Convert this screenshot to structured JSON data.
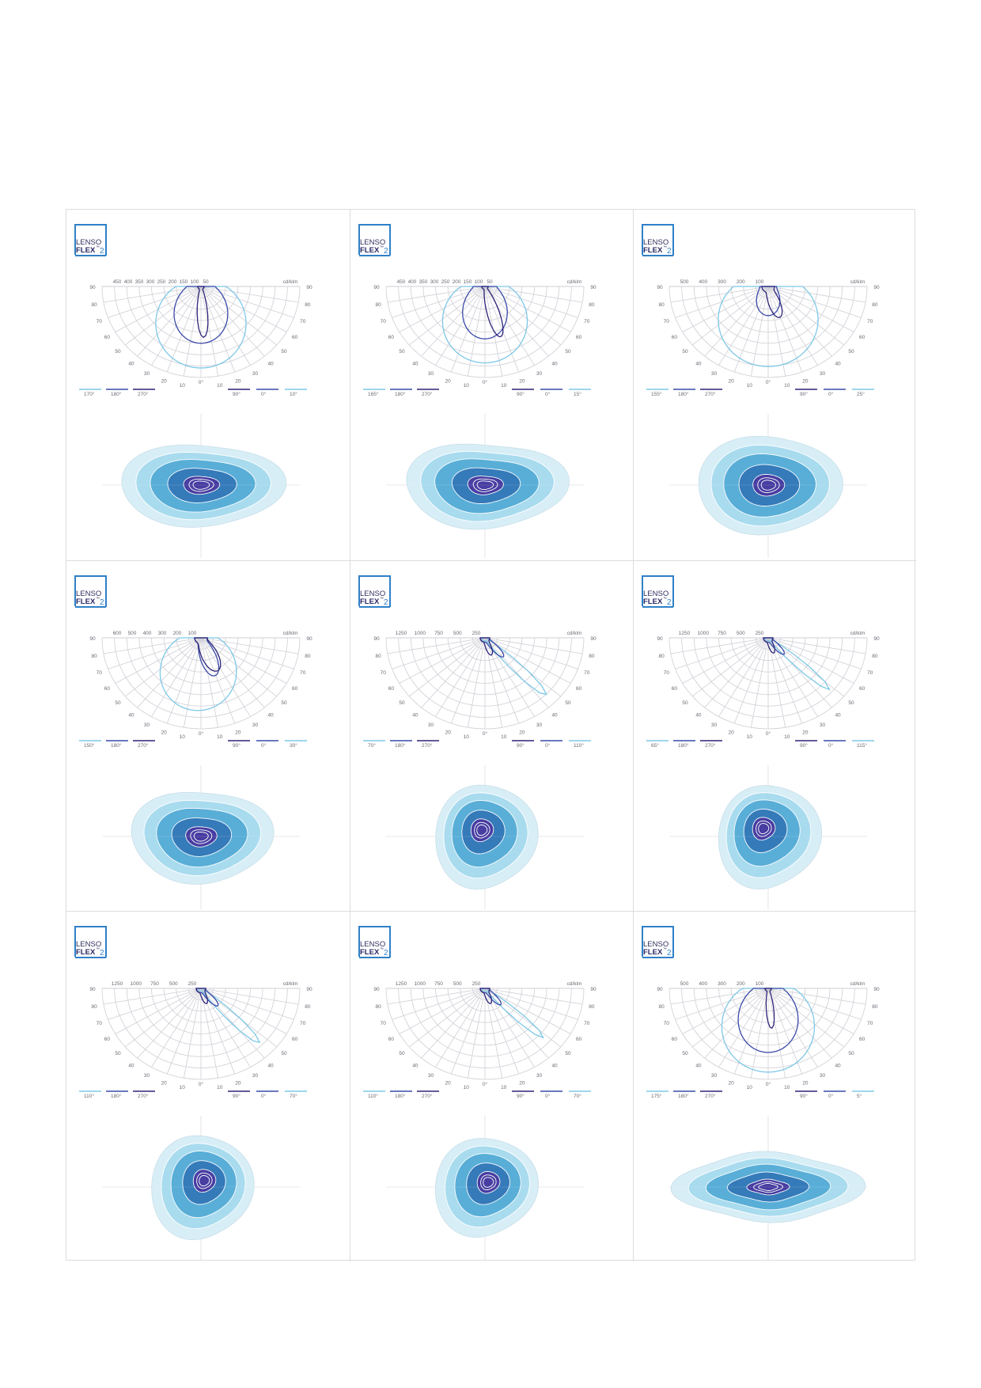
{
  "brand": {
    "line1": "LENSO",
    "line2": "FLEX",
    "tm": "™",
    "num": "2"
  },
  "colors": {
    "grid": "#cfcfd6",
    "text": "#6b6b75",
    "curve_c0": "#3a4aa8",
    "curve_c90": "#2d2478",
    "curve_cmax": "#7ec8e6",
    "iso": [
      "#d6eef7",
      "#a6daee",
      "#55acd6",
      "#3478b8",
      "#4a3aa0"
    ],
    "border": "#dcdcdc"
  },
  "chart_data": [
    {
      "type": "polar",
      "unit": "cd/klm",
      "ticks": [
        "450",
        "400",
        "350",
        "300",
        "250",
        "200",
        "150",
        "100",
        "50"
      ],
      "legend": [
        "170°",
        "180°",
        "270°",
        "90°",
        "0°",
        "10°"
      ],
      "angles": [
        "90",
        "80",
        "70",
        "60",
        "50",
        "40",
        "30",
        "20",
        "10",
        "0°"
      ]
    },
    {
      "type": "polar",
      "unit": "cd/klm",
      "ticks": [
        "450",
        "400",
        "350",
        "300",
        "250",
        "200",
        "150",
        "100",
        "50"
      ],
      "legend": [
        "165°",
        "180°",
        "270°",
        "90°",
        "0°",
        "15°"
      ],
      "angles": [
        "90",
        "80",
        "70",
        "60",
        "50",
        "40",
        "30",
        "20",
        "10",
        "0°"
      ]
    },
    {
      "type": "polar",
      "unit": "cd/klm",
      "ticks": [
        "500",
        "400",
        "300",
        "200",
        "100"
      ],
      "legend": [
        "155°",
        "180°",
        "270°",
        "90°",
        "0°",
        "25°"
      ],
      "angles": [
        "90",
        "80",
        "70",
        "60",
        "50",
        "40",
        "30",
        "20",
        "10",
        "0°"
      ]
    },
    {
      "type": "polar",
      "unit": "cd/klm",
      "ticks": [
        "600",
        "500",
        "400",
        "300",
        "200",
        "100"
      ],
      "legend": [
        "150°",
        "180°",
        "270°",
        "90°",
        "0°",
        "30°"
      ],
      "angles": [
        "90",
        "80",
        "70",
        "60",
        "50",
        "40",
        "30",
        "20",
        "10",
        "0°"
      ]
    },
    {
      "type": "polar",
      "unit": "cd/klm",
      "ticks": [
        "1250",
        "1000",
        "750",
        "500",
        "250"
      ],
      "legend": [
        "70°",
        "180°",
        "270°",
        "90°",
        "0°",
        "110°"
      ],
      "angles": [
        "90",
        "80",
        "70",
        "60",
        "50",
        "40",
        "30",
        "20",
        "10",
        "0°"
      ]
    },
    {
      "type": "polar",
      "unit": "cd/klm",
      "ticks": [
        "1250",
        "1000",
        "750",
        "500",
        "250"
      ],
      "legend": [
        "65°",
        "180°",
        "270°",
        "90°",
        "0°",
        "115°"
      ],
      "angles": [
        "90",
        "80",
        "70",
        "60",
        "50",
        "40",
        "30",
        "20",
        "10",
        "0°"
      ]
    },
    {
      "type": "polar",
      "unit": "cd/klm",
      "ticks": [
        "1250",
        "1000",
        "750",
        "500",
        "250"
      ],
      "legend": [
        "110°",
        "180°",
        "270°",
        "90°",
        "0°",
        "70°"
      ],
      "angles": [
        "90",
        "80",
        "70",
        "60",
        "50",
        "40",
        "30",
        "20",
        "10",
        "0°"
      ]
    },
    {
      "type": "polar",
      "unit": "cd/klm",
      "ticks": [
        "1250",
        "1000",
        "750",
        "500",
        "250"
      ],
      "legend": [
        "110°",
        "180°",
        "270°",
        "90°",
        "0°",
        "70°"
      ],
      "angles": [
        "90",
        "80",
        "70",
        "60",
        "50",
        "40",
        "30",
        "20",
        "10",
        "0°"
      ]
    },
    {
      "type": "polar",
      "unit": "cd/klm",
      "ticks": [
        "500",
        "400",
        "300",
        "200",
        "100"
      ],
      "legend": [
        "175°",
        "180°",
        "270°",
        "90°",
        "0°",
        "5°"
      ],
      "angles": [
        "90",
        "80",
        "70",
        "60",
        "50",
        "40",
        "30",
        "20",
        "10",
        "0°"
      ]
    }
  ]
}
